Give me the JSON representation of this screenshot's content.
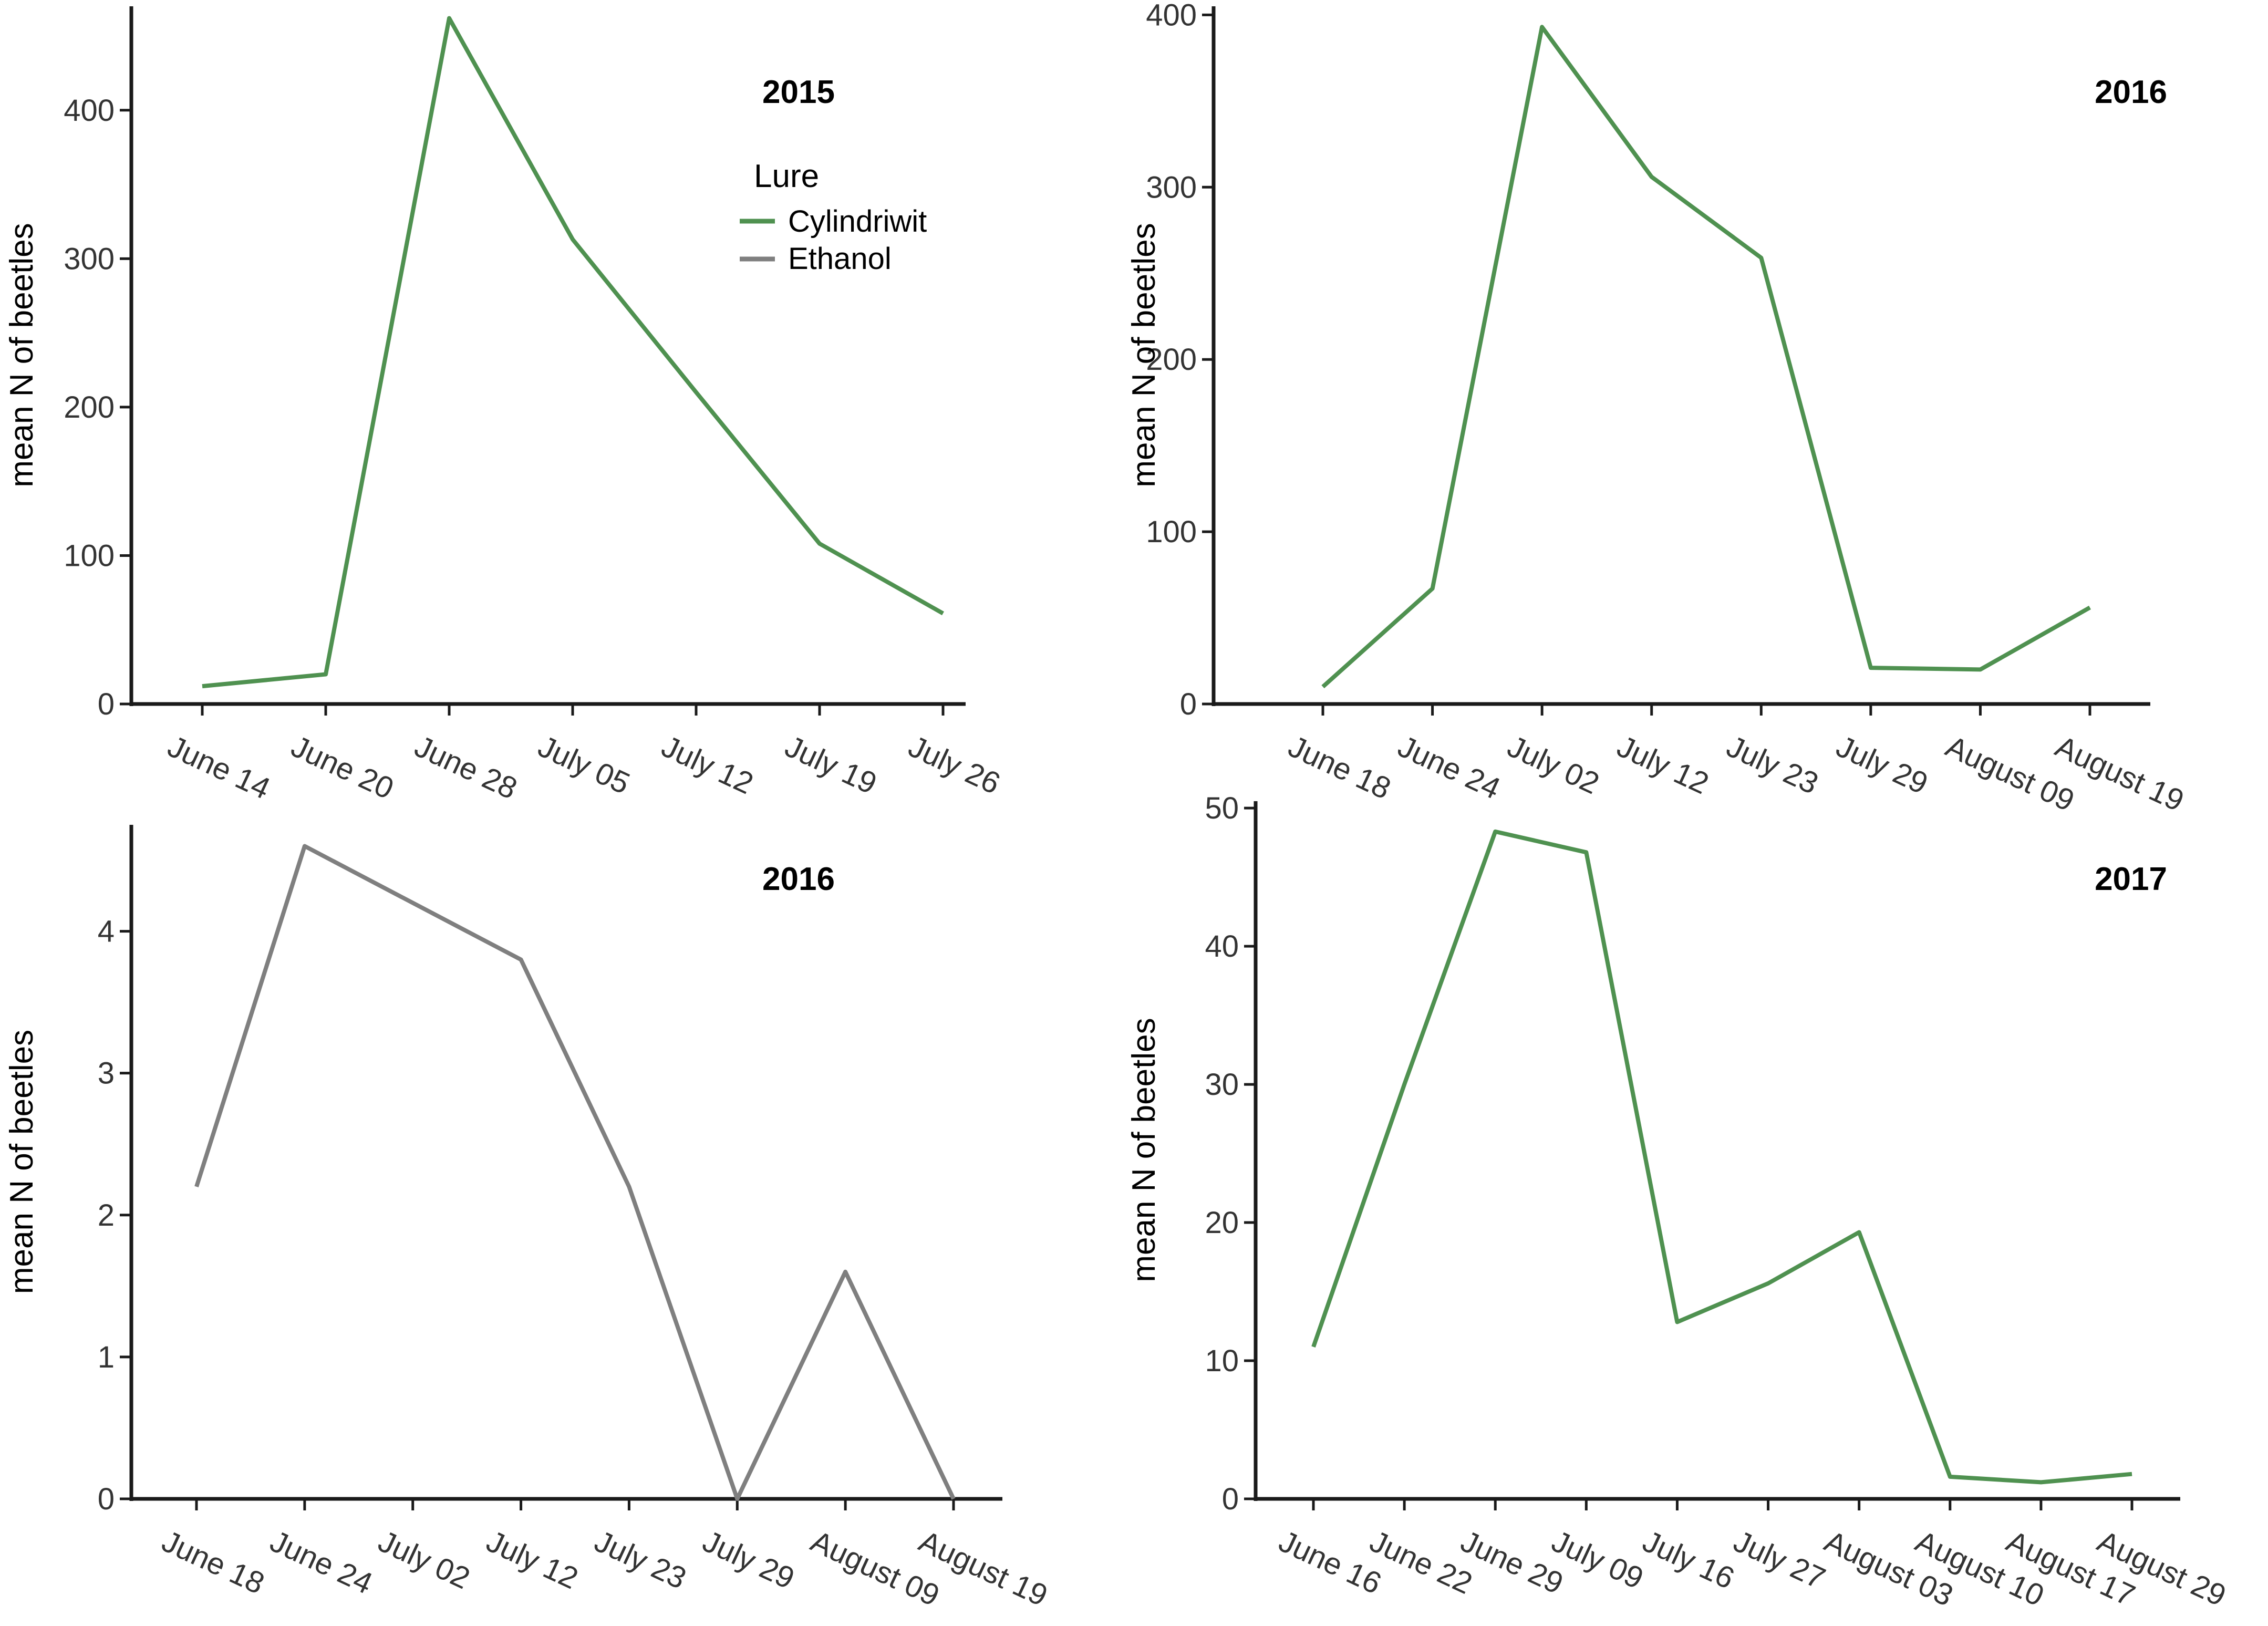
{
  "figure": {
    "legend_title": "Lure"
  },
  "colors": {
    "Cylindriwit": "#4f9150",
    "Ethanol": "#7f7f7f"
  },
  "legend": [
    {
      "name": "Cylindriwit",
      "color": "#4f9150"
    },
    {
      "name": "Ethanol",
      "color": "#7f7f7f"
    }
  ],
  "chart_data": [
    {
      "type": "line",
      "title": "2015",
      "xlabel": "",
      "ylabel": "mean N of beetles",
      "categories": [
        "June 14",
        "June 20",
        "June 28",
        "July 05",
        "July 12",
        "July 19",
        "July 26"
      ],
      "series": [
        {
          "name": "Cylindriwit",
          "values": [
            12,
            20,
            462,
            313,
            210,
            108,
            61
          ]
        }
      ],
      "ylim": [
        0,
        470
      ],
      "yticks": [
        0,
        100,
        200,
        300,
        400
      ],
      "ytick_labels": [
        "0",
        "100",
        "200",
        "300",
        "400"
      ],
      "legend": "top-right"
    },
    {
      "type": "line",
      "title": "2016",
      "xlabel": "",
      "ylabel": "mean N of beetles",
      "categories": [
        "June 18",
        "June 24",
        "July 02",
        "July 12",
        "July 23",
        "July 29",
        "August 09",
        "August 19"
      ],
      "series": [
        {
          "name": "Cylindriwit",
          "values": [
            10,
            67,
            393,
            306,
            259,
            21,
            20,
            56
          ]
        }
      ],
      "ylim": [
        0,
        405
      ],
      "yticks": [
        0,
        100,
        200,
        300,
        400
      ],
      "ytick_labels": [
        "0",
        "100",
        "200",
        "300",
        "400"
      ]
    },
    {
      "type": "line",
      "title": "2016",
      "xlabel": "",
      "ylabel": "mean N of beetles",
      "categories": [
        "June 18",
        "June 24",
        "July 02",
        "July 12",
        "July 23",
        "July 29",
        "August 09",
        "August 19"
      ],
      "series": [
        {
          "name": "Ethanol",
          "values": [
            2.2,
            4.6,
            4.2,
            3.8,
            2.2,
            0,
            1.6,
            0
          ]
        }
      ],
      "ylim": [
        0,
        4.75
      ],
      "yticks": [
        0,
        1,
        2,
        3,
        4
      ],
      "ytick_labels": [
        "0",
        "1",
        "2",
        "3",
        "4"
      ]
    },
    {
      "type": "line",
      "title": "2017",
      "xlabel": "",
      "ylabel": "mean N of beetles",
      "categories": [
        "June 16",
        "June 22",
        "June 29",
        "July 09",
        "July 16",
        "July 27",
        "August 03",
        "August 10",
        "August 17",
        "August 29"
      ],
      "series": [
        {
          "name": "Cylindriwit",
          "values": [
            11,
            30,
            48.3,
            46.8,
            12.8,
            15.6,
            19.3,
            1.6,
            1.2,
            1.8
          ]
        }
      ],
      "ylim": [
        0,
        50.5
      ],
      "yticks": [
        0,
        10,
        20,
        30,
        40,
        50
      ],
      "ytick_labels": [
        "0",
        "10",
        "20",
        "30",
        "40",
        "50"
      ]
    }
  ]
}
